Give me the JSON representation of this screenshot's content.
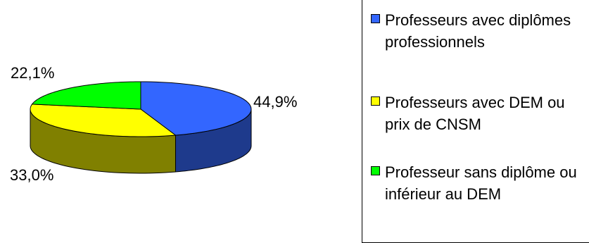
{
  "chart_data": {
    "type": "pie",
    "slices": [
      {
        "label": "Professeurs avec diplômes professionnels",
        "value": 44.9,
        "value_label": "44,9%",
        "color": "#3366FF",
        "side_color": "#1E3A8C"
      },
      {
        "label": "Professeurs avec DEM ou prix de CNSM",
        "value": 33.0,
        "value_label": "33,0%",
        "color": "#FFFF00",
        "side_color": "#808000"
      },
      {
        "label": "Professeur sans diplôme ou inférieur au DEM",
        "value": 22.1,
        "value_label": "22,1%",
        "color": "#00FF00",
        "side_color": "#008000"
      }
    ],
    "legend": {
      "placement": "right",
      "entries": [
        "Professeurs avec diplômes professionnels",
        "Professeurs avec DEM ou prix de CNSM",
        "Professeur sans diplôme ou inférieur au DEM"
      ]
    },
    "style": "3d"
  }
}
